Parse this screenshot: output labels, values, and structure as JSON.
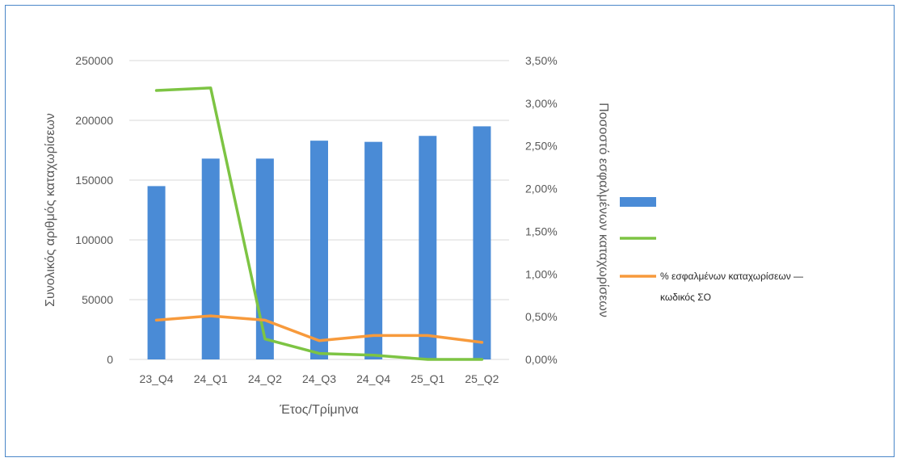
{
  "chart_data": {
    "type": "bar",
    "categories": [
      "23_Q4",
      "24_Q1",
      "24_Q2",
      "24_Q3",
      "24_Q4",
      "25_Q1",
      "25_Q2"
    ],
    "series": [
      {
        "kind": "bar",
        "axis": "left",
        "color": "#4a8bd6",
        "values": [
          145000,
          168000,
          168000,
          183000,
          182000,
          187000,
          195000
        ]
      },
      {
        "kind": "line",
        "axis": "right",
        "color": "#7dc443",
        "values": [
          3.15,
          3.18,
          0.24,
          0.07,
          0.05,
          0.0,
          0.0
        ]
      },
      {
        "name": "% εσφαλμένων καταχωρίσεων — κωδικός ΣΟ",
        "kind": "line",
        "axis": "right",
        "color": "#f79a3c",
        "values": [
          0.46,
          0.51,
          0.46,
          0.22,
          0.28,
          0.28,
          0.2
        ]
      }
    ],
    "xlabel": "Έτος/Τρίμηνα",
    "ylabel": "Συνολικός αριθμός καταχωρίσεων",
    "y2label": "Ποσοστό εσφαλμένων καταχωρίσεων",
    "ylim": [
      0,
      250000
    ],
    "y2lim": [
      0,
      3.5
    ],
    "yticks": [
      "0",
      "50000",
      "100000",
      "150000",
      "200000",
      "250000"
    ],
    "y2ticks": [
      "0,00%",
      "0,50%",
      "1,00%",
      "1,50%",
      "2,00%",
      "2,50%",
      "3,00%",
      "3,50%"
    ],
    "grid": true,
    "legend_position": "right",
    "legend_lines": [
      [],
      [],
      [
        "% εσφαλμένων καταχωρίσεων —",
        "κωδικός ΣΟ"
      ]
    ],
    "gridline_color": "#d9d9d9"
  }
}
